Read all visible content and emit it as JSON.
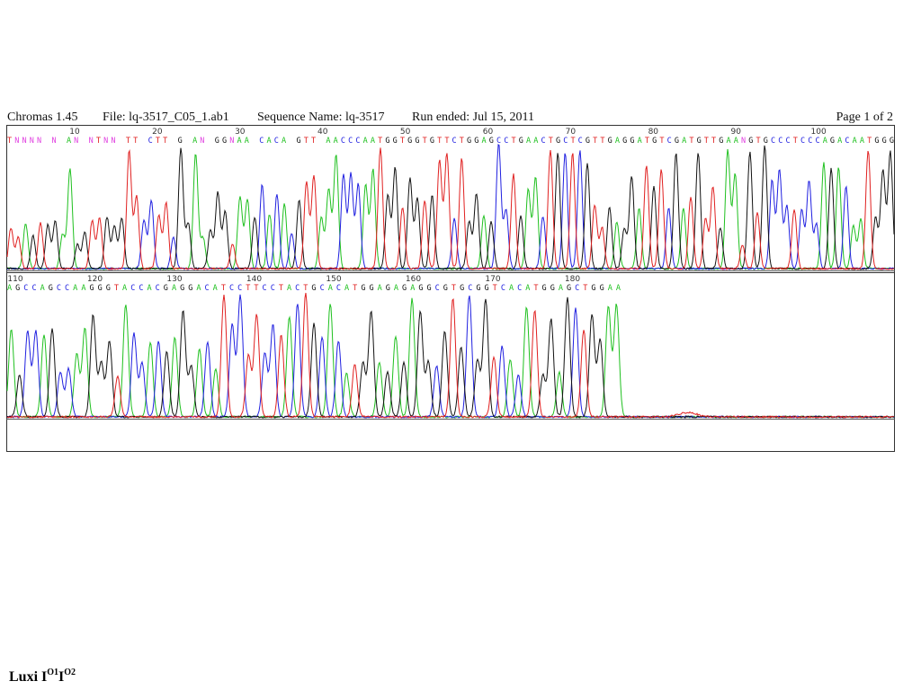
{
  "header": {
    "program": "Chromas 1.45",
    "file": "File: lq-3517_C05_1.ab1",
    "sequence_name": "Sequence Name: lq-3517",
    "run": "Run ended: Jul 15, 2011",
    "page": "Page 1 of 2"
  },
  "rows": [
    {
      "ruler": [
        "10",
        "20",
        "30",
        "40",
        "50",
        "60",
        "70",
        "80",
        "90",
        "100"
      ],
      "sequence": "TNNNN N AN NTNN TT CTT G AN GGNAA CACA GTT AACCCAATGGTGGTGTTCTGGAGCCTGAACTGCTCGTTGAGGATGTCGATGTTGAANGTGCCCTCCCAGACAATGGG"
    },
    {
      "ruler": [
        "110",
        "120",
        "130",
        "140",
        "150",
        "160",
        "170",
        "180"
      ],
      "sequence": "AGCCAGCCAAGGGTACCACGAGGACATCCTTCCTACTGCACATGGAGAGAGGCGTGCGGTCACATGGAGCTGGAA"
    }
  ],
  "footer": {
    "text": "Luxi I",
    "sup1": "O1",
    "mid": "I",
    "sup2": "O2"
  }
}
